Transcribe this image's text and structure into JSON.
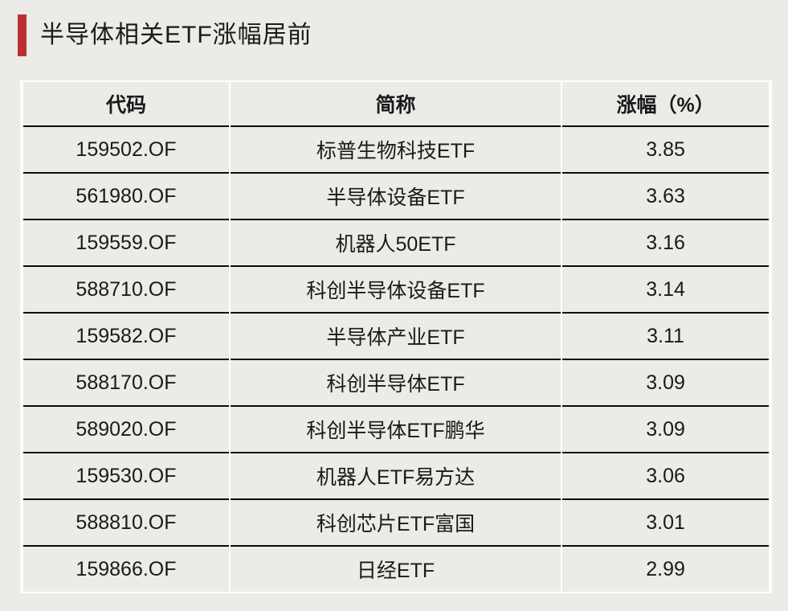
{
  "title": {
    "text": "半导体相关ETF涨幅居前"
  },
  "table": {
    "headers": [
      "代码",
      "简称",
      "涨幅（%）"
    ],
    "rows": [
      {
        "code": "159502.OF",
        "name": "标普生物科技ETF",
        "change": "3.85"
      },
      {
        "code": "561980.OF",
        "name": "半导体设备ETF",
        "change": "3.63"
      },
      {
        "code": "159559.OF",
        "name": "机器人50ETF",
        "change": "3.16"
      },
      {
        "code": "588710.OF",
        "name": "科创半导体设备ETF",
        "change": "3.14"
      },
      {
        "code": "159582.OF",
        "name": "半导体产业ETF",
        "change": "3.11"
      },
      {
        "code": "588170.OF",
        "name": "科创半导体ETF",
        "change": "3.09"
      },
      {
        "code": "589020.OF",
        "name": "科创半导体ETF鹏华",
        "change": "3.09"
      },
      {
        "code": "159530.OF",
        "name": "机器人ETF易方达",
        "change": "3.06"
      },
      {
        "code": "588810.OF",
        "name": "科创芯片ETF富国",
        "change": "3.01"
      },
      {
        "code": "159866.OF",
        "name": "日经ETF",
        "change": "2.99"
      }
    ]
  },
  "colors": {
    "accent": "#B93230",
    "background": "#ECEBE7",
    "cell_background": "#ECEBE7",
    "row_line": "#0B0B0B",
    "column_gap": "#FFFFFF",
    "text": "#1A1A1A"
  }
}
